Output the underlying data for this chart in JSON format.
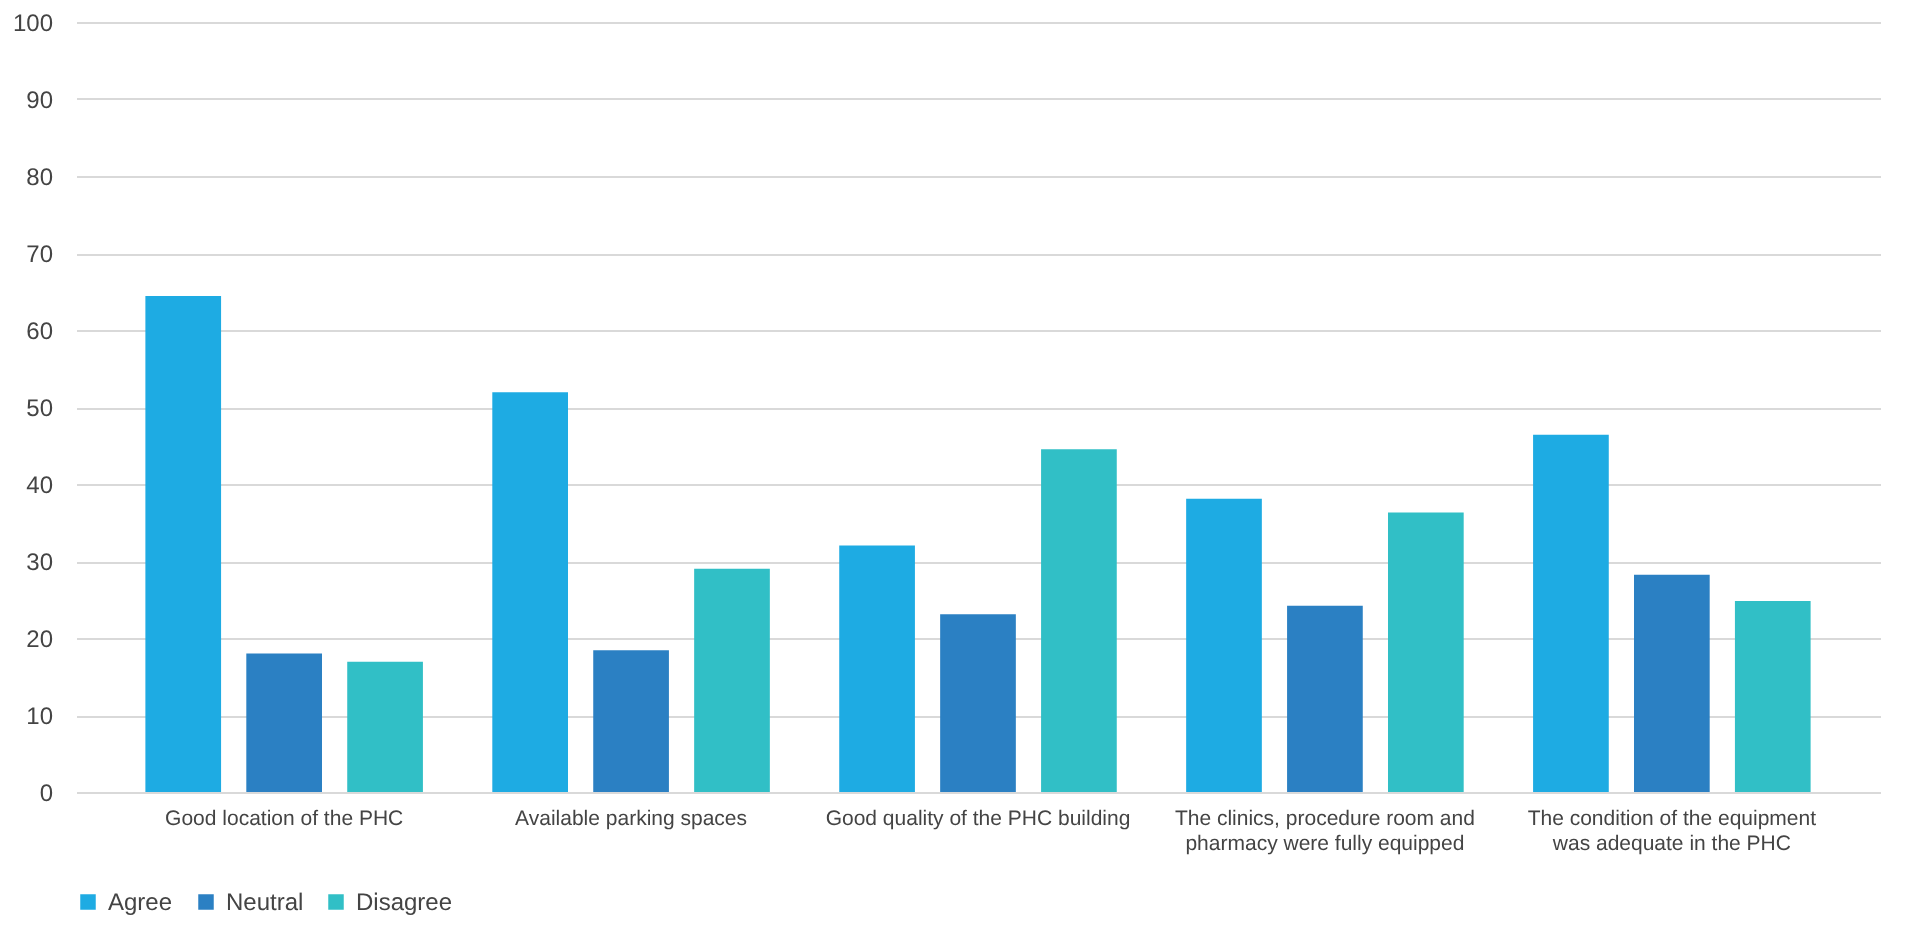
{
  "chart_data": {
    "type": "bar",
    "categories": [
      "Good location of the PHC",
      "Available parking spaces",
      "Good quality of the PHC building",
      "The clinics, procedure room and pharmacy were fully equipped",
      "The condition of the equipment was adequate in the PHC"
    ],
    "series": [
      {
        "name": "Agree",
        "color": "#1eabe3",
        "values": [
          64.4,
          51.9,
          32.0,
          38.1,
          46.4
        ]
      },
      {
        "name": "Neutral",
        "color": "#2b80c3",
        "values": [
          18.0,
          18.4,
          23.1,
          24.2,
          28.2
        ]
      },
      {
        "name": "Disagree",
        "color": "#31bfc6",
        "values": [
          16.9,
          29.0,
          44.5,
          36.3,
          24.8
        ]
      }
    ],
    "ylim": [
      0,
      100
    ],
    "yticks": [
      0,
      10,
      20,
      30,
      40,
      50,
      60,
      70,
      80,
      90,
      100
    ],
    "grid": "y",
    "legend": "bottom"
  }
}
